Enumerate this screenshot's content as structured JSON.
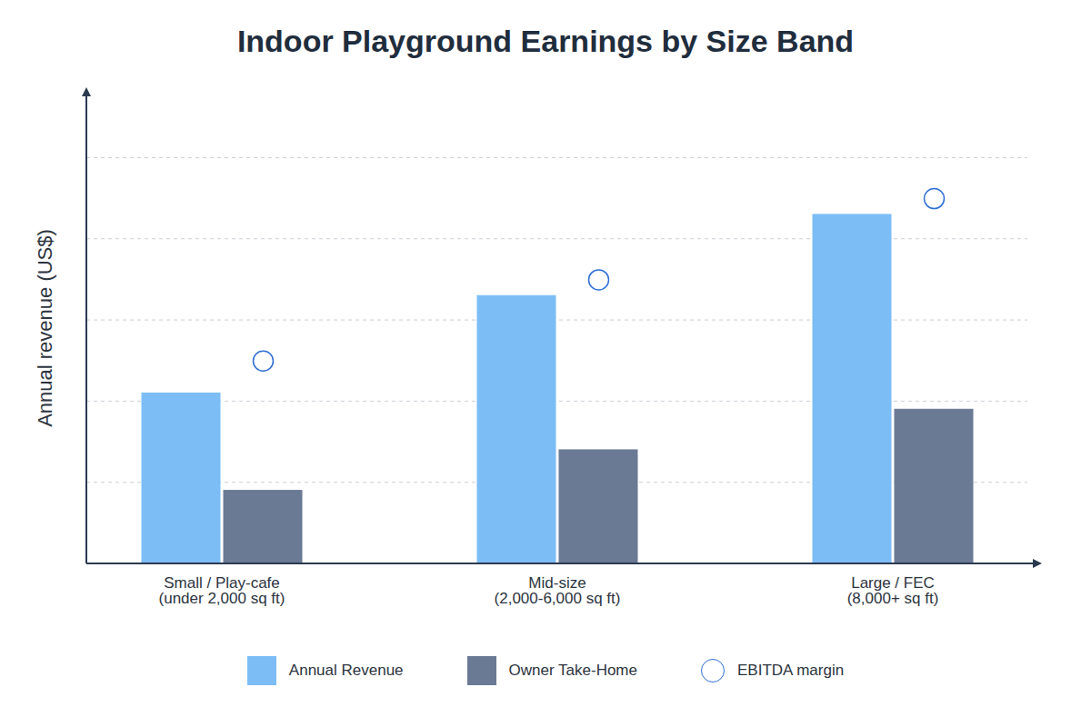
{
  "chart_data": {
    "type": "bar",
    "title": "Indoor Playground Earnings by Size Band",
    "ylabel": "Annual revenue (US$)",
    "categories": [
      "Small / Play-cafe\n(under 2,000 sq ft)",
      "Mid-size\n(2,000-6,000 sq ft)",
      "Large / FEC\n(8,000+ sq ft)"
    ],
    "series": [
      {
        "name": "Annual Revenue",
        "color": "#7cbdf6",
        "values": [
          2.1,
          3.3,
          4.3
        ]
      },
      {
        "name": "Owner Take-Home",
        "color": "#6b7a94",
        "values": [
          0.9,
          1.4,
          1.9
        ]
      },
      {
        "name": "EBITDA margin",
        "type": "scatter",
        "marker": "circle",
        "color": "#2f6fd6",
        "values": [
          2.5,
          3.5,
          4.5
        ]
      }
    ],
    "ylim": [
      0,
      5.8
    ],
    "yticks": [
      0,
      1,
      2,
      3,
      4,
      5
    ],
    "grid": true,
    "legend": "bottom",
    "tick_labels": "x"
  }
}
